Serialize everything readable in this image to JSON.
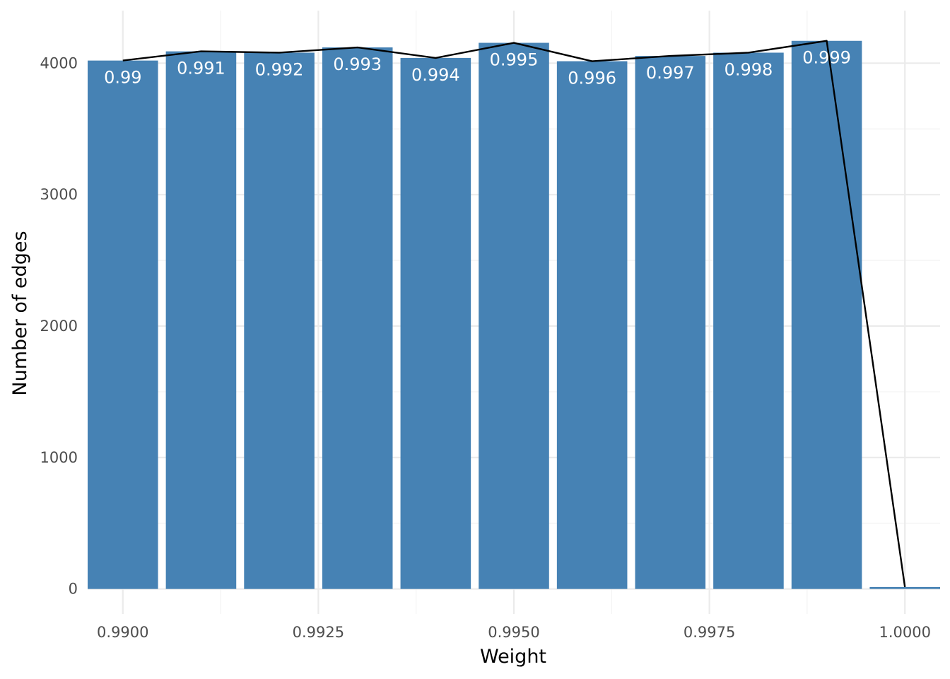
{
  "chart_data": {
    "type": "bar",
    "xlabel": "Weight",
    "ylabel": "Number of edges",
    "xlim": [
      0.98955,
      1.00045
    ],
    "ylim": [
      -190,
      4400
    ],
    "x_ticks": [
      {
        "value": 0.99,
        "label": "0.9900"
      },
      {
        "value": 0.9925,
        "label": "0.9925"
      },
      {
        "value": 0.995,
        "label": "0.9950"
      },
      {
        "value": 0.9975,
        "label": "0.9975"
      },
      {
        "value": 1.0,
        "label": "1.0000"
      }
    ],
    "x_minor_ticks": [
      0.99125,
      0.99375,
      0.99625,
      0.99875
    ],
    "y_ticks": [
      {
        "value": 0,
        "label": "0"
      },
      {
        "value": 1000,
        "label": "1000"
      },
      {
        "value": 2000,
        "label": "2000"
      },
      {
        "value": 3000,
        "label": "3000"
      },
      {
        "value": 4000,
        "label": "4000"
      }
    ],
    "y_minor_ticks": [
      500,
      1500,
      2500,
      3500
    ],
    "bar_width": 0.0009,
    "bars": [
      {
        "x": 0.99,
        "value": 4020,
        "label": "0.99"
      },
      {
        "x": 0.991,
        "value": 4090,
        "label": "0.991"
      },
      {
        "x": 0.992,
        "value": 4080,
        "label": "0.992"
      },
      {
        "x": 0.993,
        "value": 4120,
        "label": "0.993"
      },
      {
        "x": 0.994,
        "value": 4040,
        "label": "0.994"
      },
      {
        "x": 0.995,
        "value": 4155,
        "label": "0.995"
      },
      {
        "x": 0.996,
        "value": 4015,
        "label": "0.996"
      },
      {
        "x": 0.997,
        "value": 4055,
        "label": "0.997"
      },
      {
        "x": 0.998,
        "value": 4080,
        "label": "0.998"
      },
      {
        "x": 0.999,
        "value": 4170,
        "label": "0.999"
      },
      {
        "x": 1.0,
        "value": 15,
        "label": ""
      }
    ],
    "line_values": [
      4020,
      4090,
      4080,
      4120,
      4040,
      4155,
      4015,
      4055,
      4080,
      4170,
      15
    ],
    "grid": true,
    "colors": {
      "bar": "#4682b4",
      "line": "#000000",
      "grid_major": "#ebebeb",
      "grid_minor": "#f3f3f3",
      "bar_label": "#ffffff"
    }
  }
}
